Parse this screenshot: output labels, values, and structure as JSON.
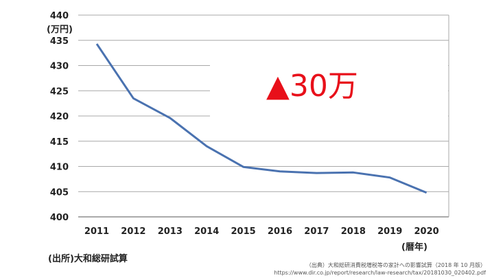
{
  "chart_data": {
    "type": "line",
    "title": "",
    "x": [
      "2011",
      "2012",
      "2013",
      "2014",
      "2015",
      "2016",
      "2017",
      "2018",
      "2019",
      "2020"
    ],
    "series": [
      {
        "values": [
          434.3,
          423.5,
          419.6,
          414.0,
          409.9,
          409.0,
          408.7,
          408.8,
          407.8,
          404.8
        ]
      }
    ],
    "ylim": [
      400,
      440
    ],
    "yticks": [
      "400",
      "405",
      "410",
      "415",
      "420",
      "425",
      "430",
      "435",
      "440"
    ],
    "ylabel": "(万円)",
    "xlabel": "(暦年)",
    "grid": true,
    "line_color": "#4a72b0",
    "annotation": {
      "prefix": "▲",
      "text": "30万",
      "color": "#e8101a"
    },
    "source": "(出所)大和総研試算"
  },
  "footnote": {
    "line1": "（出典）大和総研消費税増税等の家計への影響試算（2018 年 10 月版）",
    "line2": "https://www.dir.co.jp/report/research/law-research/tax/20181030_020402.pdf"
  }
}
